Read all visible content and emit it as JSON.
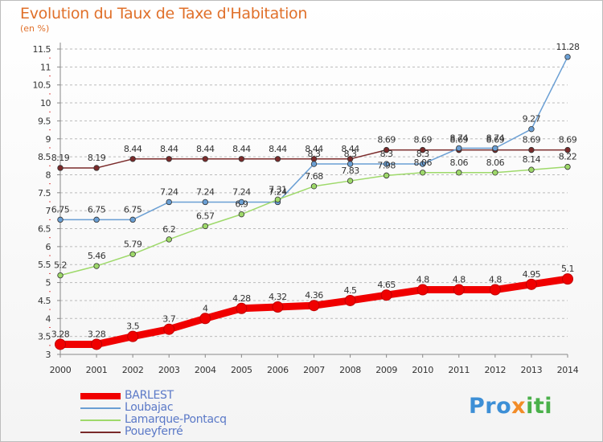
{
  "title": "Evolution du Taux de Taxe d'Habitation",
  "unit_label": "(en %)",
  "logo": {
    "p1": "Pro",
    "p2": "x",
    "p3": "iti"
  },
  "colors": {
    "barlest": "#f00000",
    "loubajac": "#6a9fd4",
    "lamarque": "#9ed96a",
    "poueyferre": "#7a2a2a",
    "axis": "#888888",
    "grid": "#bbbbbb",
    "title": "#e0702a",
    "legend_text": "#5b79c7"
  },
  "chart_data": {
    "type": "line",
    "title": "Evolution du Taux de Taxe d'Habitation",
    "ylabel": "(en %)",
    "x": [
      2000,
      2001,
      2002,
      2003,
      2004,
      2005,
      2006,
      2007,
      2008,
      2009,
      2010,
      2011,
      2012,
      2013,
      2014
    ],
    "ylim": [
      3,
      11.5
    ],
    "yticks": [
      3,
      3.5,
      4,
      4.5,
      5,
      5.5,
      6,
      6.5,
      7,
      7.5,
      8,
      8.5,
      9,
      9.5,
      10,
      10.5,
      11,
      11.5
    ],
    "grid": "horizontal dashed",
    "legend": "bottom-left",
    "series": [
      {
        "name": "BARLEST",
        "key": "barlest",
        "values": [
          3.28,
          3.28,
          3.5,
          3.7,
          4,
          4.28,
          4.32,
          4.36,
          4.5,
          4.65,
          4.8,
          4.8,
          4.8,
          4.95,
          5.1
        ],
        "labels": [
          "3.28",
          "3.28",
          "3.5",
          "3.7",
          "4",
          "4.28",
          "4.32",
          "4.36",
          "4.5",
          "4.65",
          "4.8",
          "4.8",
          "4.8",
          "4.95",
          "5.1"
        ]
      },
      {
        "name": "Loubajac",
        "key": "loubajac",
        "values": [
          6.75,
          6.75,
          6.75,
          7.24,
          7.24,
          7.24,
          7.24,
          8.3,
          8.3,
          8.3,
          8.3,
          8.74,
          8.74,
          9.27,
          11.28
        ],
        "labels": [
          "6.75",
          "6.75",
          "6.75",
          "7.24",
          "7.24",
          "7.24",
          "7.24",
          "8.3",
          "8.3",
          "8.3",
          "8.3",
          "8.74",
          "8.74",
          "9.27",
          "11.28"
        ]
      },
      {
        "name": "Lamarque-Pontacq",
        "key": "lamarque",
        "values": [
          5.2,
          5.46,
          5.79,
          6.2,
          6.57,
          6.9,
          7.31,
          7.68,
          7.83,
          7.98,
          8.06,
          8.06,
          8.06,
          8.14,
          8.22
        ],
        "labels": [
          "5.2",
          "5.46",
          "5.79",
          "6.2",
          "6.57",
          "6.9",
          "7.31",
          "7.68",
          "7.83",
          "7.98",
          "8.06",
          "8.06",
          "8.06",
          "8.14",
          "8.22"
        ]
      },
      {
        "name": "Poueyferré",
        "key": "poueyferre",
        "values": [
          8.19,
          8.19,
          8.44,
          8.44,
          8.44,
          8.44,
          8.44,
          8.44,
          8.44,
          8.69,
          8.69,
          8.69,
          8.69,
          8.69,
          8.69
        ],
        "labels": [
          "8.19",
          "8.19",
          "8.44",
          "8.44",
          "8.44",
          "8.44",
          "8.44",
          "8.44",
          "8.44",
          "8.69",
          "8.69",
          "8.69",
          "8.69",
          "8.69",
          "8.69"
        ]
      }
    ]
  }
}
